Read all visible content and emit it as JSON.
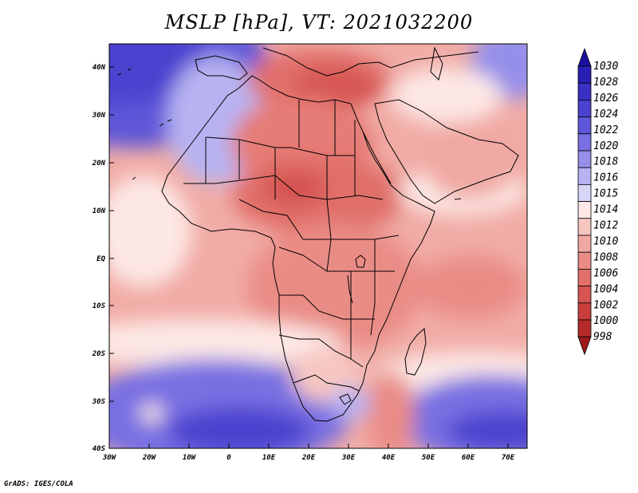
{
  "title": "MSLP [hPa], VT: 2021032200",
  "credit": "GrADS: IGES/COLA",
  "map": {
    "lon_range": [
      -30,
      77
    ],
    "lat_range": [
      -40,
      45
    ],
    "lat_labels": [
      "40N",
      "30N",
      "20N",
      "10N",
      "EQ",
      "10S",
      "20S",
      "30S",
      "40S"
    ],
    "lon_labels": [
      "30W",
      "20W",
      "10W",
      "0",
      "10E",
      "20E",
      "30E",
      "40E",
      "50E",
      "60E",
      "70E"
    ],
    "pressure_regions": [
      {
        "name": "north-atlantic-high",
        "level": 1026
      },
      {
        "name": "eastern-mediterranean-low",
        "level": 1004
      },
      {
        "name": "sahara-low",
        "level": 1006
      },
      {
        "name": "sahel-low",
        "level": 1006
      },
      {
        "name": "south-atlantic-high",
        "level": 1026
      },
      {
        "name": "south-indian-ocean-high",
        "level": 1024
      },
      {
        "name": "agulhas-trough",
        "level": 1008
      }
    ]
  },
  "colorbar": {
    "labels": [
      "1030",
      "1028",
      "1026",
      "1024",
      "1022",
      "1020",
      "1018",
      "1016",
      "1015",
      "1014",
      "1012",
      "1010",
      "1008",
      "1006",
      "1004",
      "1002",
      "1000",
      "998"
    ],
    "colors": [
      "#1a0fa0",
      "#2a1fb4",
      "#3a30c4",
      "#4b42cf",
      "#5e56d8",
      "#7870e2",
      "#958fea",
      "#b7b3f2",
      "#d8d6f8",
      "#fde8e5",
      "#f6c6c1",
      "#f0a8a2",
      "#ea8c86",
      "#e1706b",
      "#d65451",
      "#c93d3b",
      "#b52a29",
      "#9c1a1a"
    ]
  }
}
